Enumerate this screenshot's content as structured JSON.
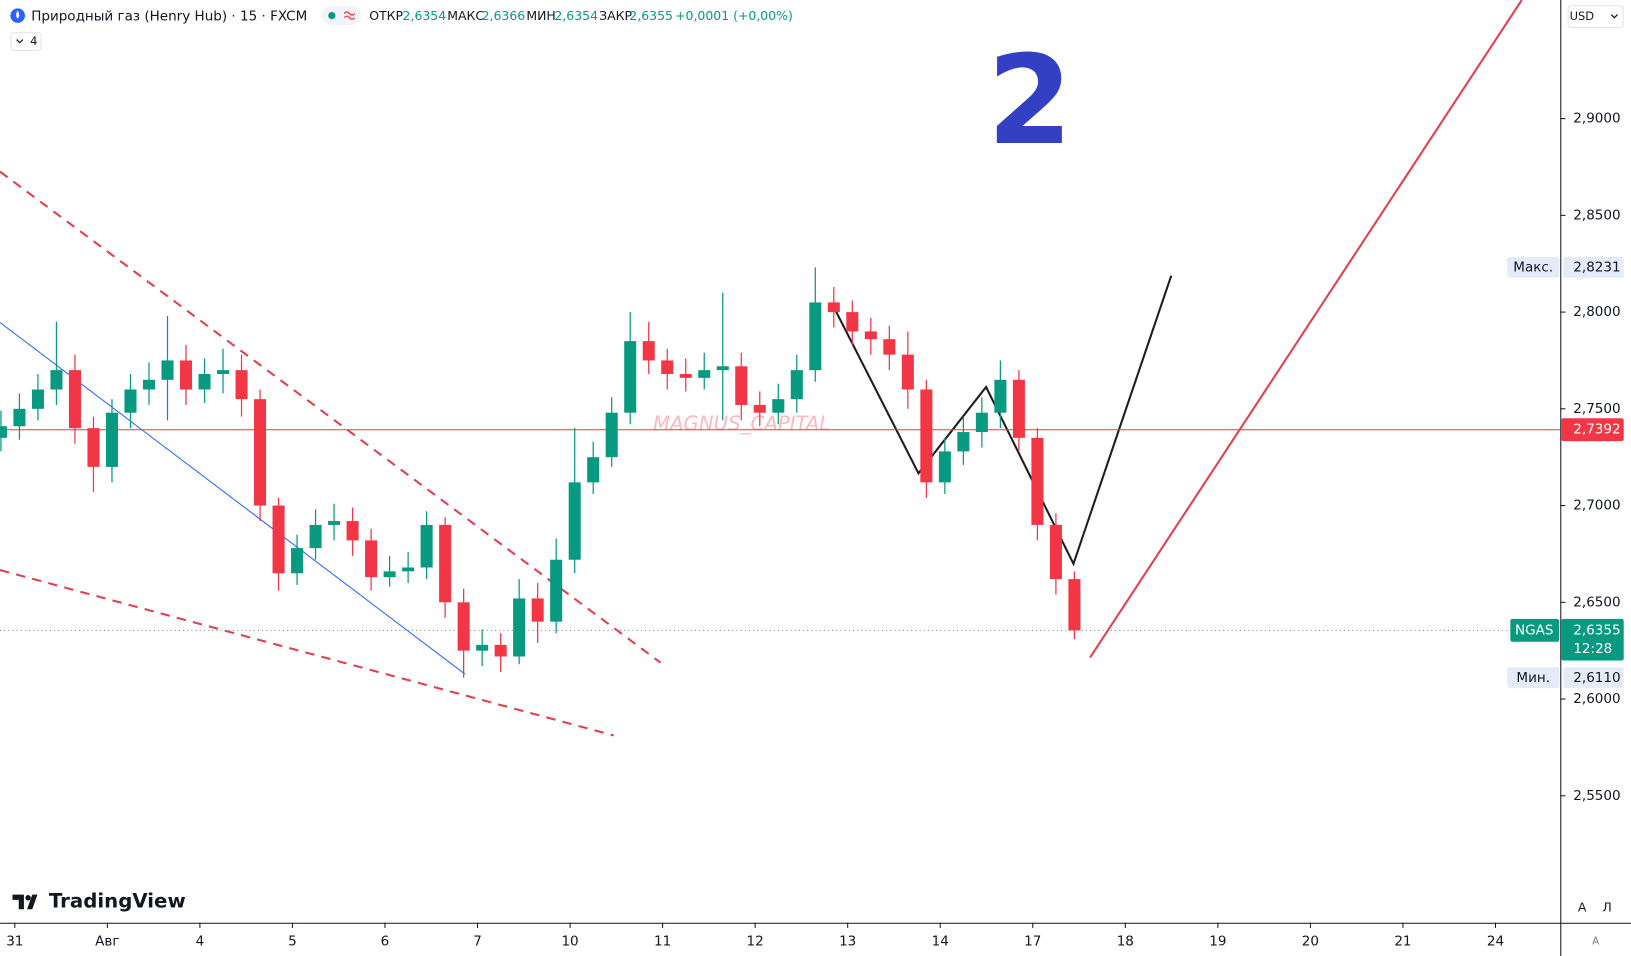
{
  "chart_data": {
    "type": "candlestick",
    "title": "Природный газ (Henry Hub) · 15 · FXCM",
    "x": [
      -0.15,
      0.05,
      0.25,
      0.45,
      0.65,
      0.85,
      1.05,
      1.25,
      1.45,
      1.65,
      1.85,
      2.05,
      2.25,
      2.45,
      2.65,
      2.85,
      3.05,
      3.25,
      3.45,
      3.65,
      3.85,
      4.05,
      4.25,
      4.45,
      4.65,
      4.85,
      5.05,
      5.25,
      5.45,
      5.65,
      5.85,
      6.05,
      6.25,
      6.45,
      6.65,
      6.85,
      7.05,
      7.25,
      7.45,
      7.65,
      7.85,
      8.05,
      8.25,
      8.45,
      8.65,
      8.85,
      9.05,
      9.25,
      9.45,
      9.65,
      9.85,
      10.05,
      10.25,
      10.45,
      10.65,
      10.85,
      11.05,
      11.25,
      11.45
    ],
    "open": [
      2.735,
      2.741,
      2.75,
      2.76,
      2.77,
      2.74,
      2.72,
      2.748,
      2.76,
      2.765,
      2.775,
      2.76,
      2.768,
      2.77,
      2.755,
      2.7,
      2.665,
      2.678,
      2.69,
      2.692,
      2.682,
      2.663,
      2.666,
      2.668,
      2.69,
      2.65,
      2.625,
      2.628,
      2.622,
      2.652,
      2.64,
      2.672,
      2.712,
      2.725,
      2.748,
      2.785,
      2.775,
      2.768,
      2.766,
      2.77,
      2.772,
      2.752,
      2.748,
      2.755,
      2.77,
      2.805,
      2.8,
      2.79,
      2.786,
      2.778,
      2.76,
      2.712,
      2.728,
      2.738,
      2.748,
      2.765,
      2.735,
      2.69,
      2.662
    ],
    "high": [
      2.749,
      2.758,
      2.768,
      2.795,
      2.778,
      2.746,
      2.755,
      2.768,
      2.774,
      2.798,
      2.783,
      2.776,
      2.781,
      2.778,
      2.76,
      2.704,
      2.685,
      2.698,
      2.701,
      2.699,
      2.688,
      2.674,
      2.676,
      2.697,
      2.694,
      2.657,
      2.636,
      2.634,
      2.662,
      2.66,
      2.683,
      2.74,
      2.733,
      2.756,
      2.8,
      2.795,
      2.781,
      2.776,
      2.779,
      2.81,
      2.779,
      2.759,
      2.763,
      2.778,
      2.8231,
      2.813,
      2.806,
      2.797,
      2.793,
      2.79,
      2.765,
      2.735,
      2.746,
      2.756,
      2.775,
      2.77,
      2.74,
      2.696,
      2.666
    ],
    "low": [
      2.728,
      2.734,
      2.744,
      2.752,
      2.732,
      2.707,
      2.712,
      2.74,
      2.752,
      2.744,
      2.752,
      2.753,
      2.758,
      2.746,
      2.692,
      2.656,
      2.659,
      2.672,
      2.682,
      2.674,
      2.656,
      2.658,
      2.66,
      2.662,
      2.642,
      2.611,
      2.617,
      2.614,
      2.618,
      2.629,
      2.634,
      2.665,
      2.706,
      2.72,
      2.742,
      2.768,
      2.76,
      2.759,
      2.76,
      2.744,
      2.744,
      2.741,
      2.742,
      2.748,
      2.764,
      2.792,
      2.783,
      2.778,
      2.77,
      2.75,
      2.704,
      2.706,
      2.721,
      2.73,
      2.74,
      2.728,
      2.682,
      2.654,
      2.631
    ],
    "close": [
      2.741,
      2.75,
      2.76,
      2.77,
      2.74,
      2.72,
      2.748,
      2.76,
      2.765,
      2.775,
      2.76,
      2.768,
      2.77,
      2.755,
      2.7,
      2.665,
      2.678,
      2.69,
      2.692,
      2.682,
      2.663,
      2.666,
      2.668,
      2.69,
      2.65,
      2.625,
      2.628,
      2.622,
      2.652,
      2.64,
      2.672,
      2.712,
      2.725,
      2.748,
      2.785,
      2.775,
      2.768,
      2.766,
      2.77,
      2.772,
      2.752,
      2.748,
      2.755,
      2.77,
      2.805,
      2.8,
      2.79,
      2.786,
      2.778,
      2.76,
      2.712,
      2.728,
      2.738,
      2.748,
      2.765,
      2.735,
      2.69,
      2.662,
      2.6355
    ],
    "up_color": "#089981",
    "down_color": "#f23645",
    "xlim": [
      -0.16,
      16.7
    ],
    "ylim": [
      2.4844,
      2.9613
    ],
    "xticks": [
      {
        "value": 0,
        "label": "31"
      },
      {
        "value": 1,
        "label": "Авг"
      },
      {
        "value": 2,
        "label": "4"
      },
      {
        "value": 3,
        "label": "5"
      },
      {
        "value": 4,
        "label": "6"
      },
      {
        "value": 5,
        "label": "7"
      },
      {
        "value": 6,
        "label": "10"
      },
      {
        "value": 7,
        "label": "11"
      },
      {
        "value": 8,
        "label": "12"
      },
      {
        "value": 9,
        "label": "13"
      },
      {
        "value": 10,
        "label": "14"
      },
      {
        "value": 11,
        "label": "17"
      },
      {
        "value": 12,
        "label": "18"
      },
      {
        "value": 13,
        "label": "19"
      },
      {
        "value": 14,
        "label": "20"
      },
      {
        "value": 15,
        "label": "21"
      },
      {
        "value": 16,
        "label": "24"
      }
    ],
    "yticks": [
      {
        "value": 2.55,
        "label": "2,5500"
      },
      {
        "value": 2.6,
        "label": "2,6000"
      },
      {
        "value": 2.65,
        "label": "2,6500"
      },
      {
        "value": 2.7,
        "label": "2,7000"
      },
      {
        "value": 2.75,
        "label": "2,7500"
      },
      {
        "value": 2.8,
        "label": "2,8000"
      },
      {
        "value": 2.85,
        "label": "2,8500"
      },
      {
        "value": 2.9,
        "label": "2,9000"
      }
    ],
    "price_labels": [
      {
        "label": "Макс.",
        "value": 2.8231,
        "value_label": "2,8231"
      },
      {
        "label": "Мин.",
        "value": 2.611,
        "value_label": "2,6110"
      }
    ],
    "hline": {
      "value": 2.7392,
      "label": "2,7392",
      "color": "#f23645"
    },
    "last_price": {
      "symbol": "NGAS",
      "value": 2.6355,
      "label": "2,6355",
      "countdown": "12:28",
      "color": "#089981"
    }
  },
  "header": {
    "legend": [
      {
        "name": "ОТКР",
        "value": "2,6354"
      },
      {
        "name": "МАКС",
        "value": "2,6366"
      },
      {
        "name": "МИН",
        "value": "2,6354"
      },
      {
        "name": "ЗАКР",
        "value": "2,6355"
      }
    ],
    "change": "+0,0001 (+0,00%)",
    "indicators_count": "4"
  },
  "annotations": {
    "wave_number": "2",
    "watermark": "MAGNUS_CAPITAL",
    "logo": "TradingView"
  },
  "toolbar": {
    "currency": "USD",
    "buttons": [
      "A",
      "Л"
    ],
    "corner": "A"
  }
}
